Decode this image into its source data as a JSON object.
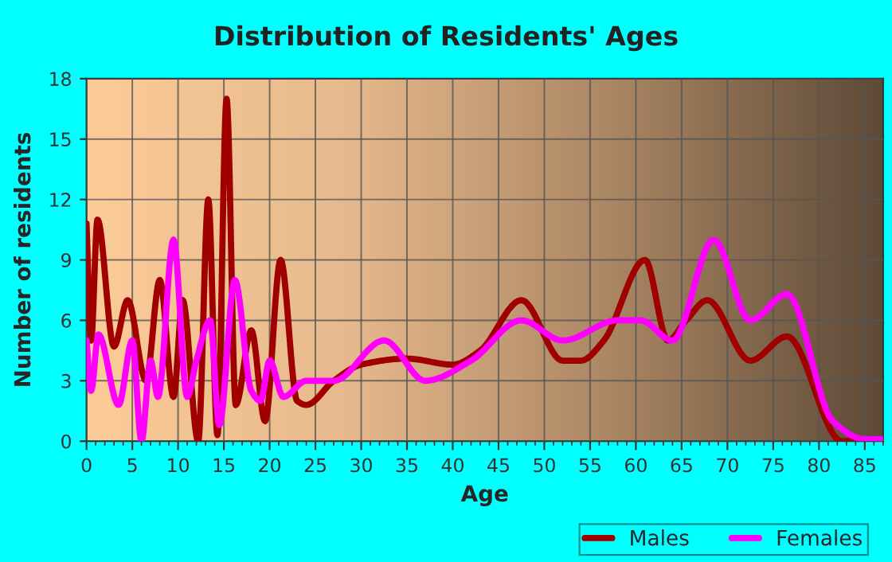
{
  "chart_data": {
    "type": "line",
    "title": "Distribution of Residents' Ages",
    "xlabel": "Age",
    "ylabel": "Number of residents",
    "xlim": [
      0,
      87
    ],
    "xticks": [
      0,
      5,
      10,
      15,
      20,
      25,
      30,
      35,
      40,
      45,
      50,
      55,
      60,
      65,
      70,
      75,
      80,
      85
    ],
    "ylim": [
      0,
      18
    ],
    "yticks": [
      0,
      3,
      6,
      9,
      12,
      15,
      18
    ],
    "grid": true,
    "legend": "bottom",
    "marker": "none",
    "line_style": "solid",
    "series": [
      {
        "name": "Males",
        "color": "#a00000",
        "x": [
          0,
          0.5,
          1.2,
          3,
          4.5,
          6.5,
          8,
          9.5,
          10.5,
          12.2,
          13.3,
          14.3,
          15.3,
          16.3,
          18,
          19.5,
          21.2,
          23,
          24,
          27,
          30,
          35,
          40,
          43,
          47.5,
          52,
          54,
          56.5,
          61,
          63.5,
          65.5,
          67.8,
          72.5,
          76.5,
          82.5,
          87
        ],
        "values": [
          10.8,
          5,
          11,
          4.7,
          7,
          3,
          8,
          2.2,
          7,
          0,
          12,
          0.3,
          17,
          1.8,
          5.5,
          1,
          9,
          2,
          1.8,
          3,
          3.8,
          4.1,
          3.8,
          4.5,
          7,
          4,
          4,
          5,
          9,
          5,
          6,
          7,
          4,
          5.2,
          0,
          0
        ]
      },
      {
        "name": "Females",
        "color": "#ff00ff",
        "x": [
          0,
          0.5,
          1.3,
          3.5,
          5,
          6,
          7,
          7.8,
          9.5,
          11,
          12,
          13.5,
          14.5,
          16.2,
          18,
          19,
          20,
          21.5,
          24,
          27,
          32.5,
          37,
          42,
          47.5,
          52,
          58,
          60.5,
          64,
          68.5,
          72.5,
          76.5,
          81.5,
          85,
          87
        ],
        "values": [
          5,
          2.5,
          5.3,
          1.8,
          5,
          0,
          4,
          2.2,
          10,
          2.2,
          4,
          6,
          0.8,
          8,
          2.5,
          2,
          4,
          2.2,
          3,
          3,
          5,
          3,
          4,
          6,
          5,
          6,
          6,
          5,
          10,
          6,
          7.3,
          1,
          0.1,
          0.1
        ]
      }
    ]
  }
}
